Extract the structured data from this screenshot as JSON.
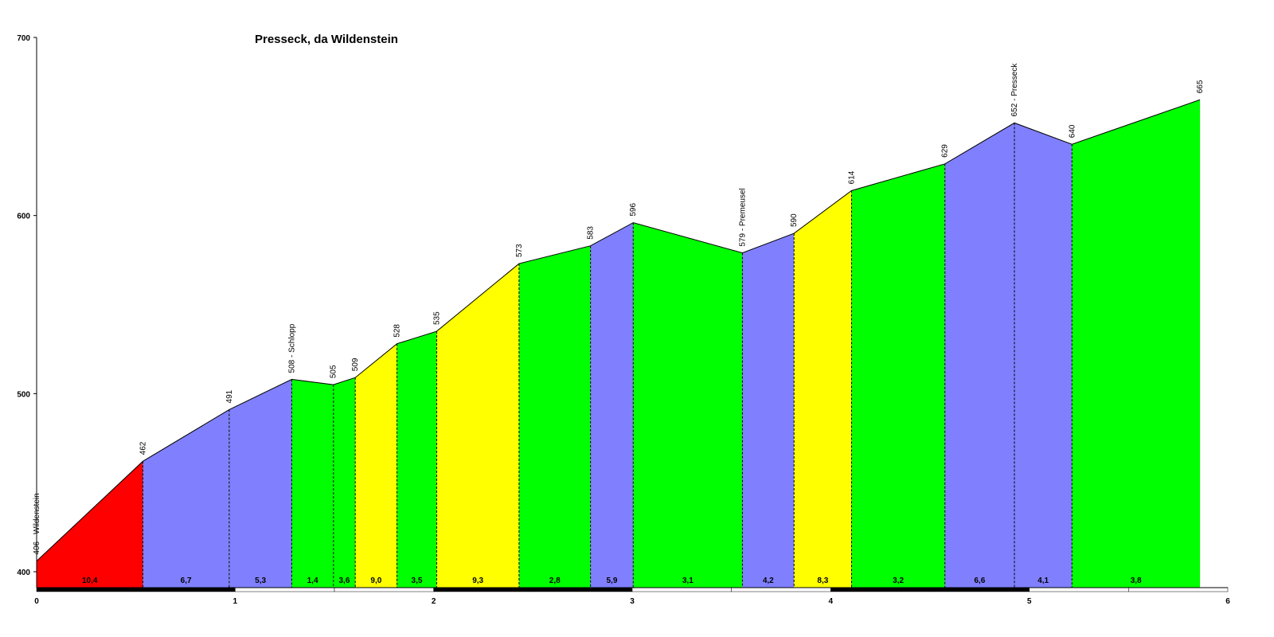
{
  "chart_data": {
    "type": "area",
    "title": "Presseck, da Wildenstein",
    "xlabel": "",
    "ylabel": "",
    "xlim": [
      0,
      6
    ],
    "ylim": [
      400,
      700
    ],
    "x_ticks": [
      "0",
      "1",
      "2",
      "3",
      "4",
      "5",
      "6"
    ],
    "y_ticks": [
      "400",
      "500",
      "600",
      "700"
    ],
    "points": [
      {
        "x": 0.0,
        "y": 406,
        "label": "406 - Wildenstein"
      },
      {
        "x": 0.535,
        "y": 462,
        "label": "462"
      },
      {
        "x": 0.97,
        "y": 491,
        "label": "491"
      },
      {
        "x": 1.285,
        "y": 508,
        "label": "508 - Schlopp"
      },
      {
        "x": 1.495,
        "y": 505,
        "label": "505"
      },
      {
        "x": 1.605,
        "y": 509,
        "label": "509"
      },
      {
        "x": 1.815,
        "y": 528,
        "label": "528"
      },
      {
        "x": 2.015,
        "y": 535,
        "label": "535"
      },
      {
        "x": 2.43,
        "y": 573,
        "label": "573"
      },
      {
        "x": 2.79,
        "y": 583,
        "label": "583"
      },
      {
        "x": 3.005,
        "y": 596,
        "label": "596"
      },
      {
        "x": 3.555,
        "y": 579,
        "label": "579 - Premeusel"
      },
      {
        "x": 3.815,
        "y": 590,
        "label": "590"
      },
      {
        "x": 4.105,
        "y": 614,
        "label": "614"
      },
      {
        "x": 4.575,
        "y": 629,
        "label": "629"
      },
      {
        "x": 4.925,
        "y": 652,
        "label": "652 - Presseck"
      },
      {
        "x": 5.215,
        "y": 640,
        "label": "640"
      },
      {
        "x": 5.86,
        "y": 665,
        "label": "665"
      }
    ],
    "segment_gradients": [
      "10,4",
      "6,7",
      "5,3",
      "1,4",
      "3,6",
      "9,0",
      "3,5",
      "9,3",
      "2,8",
      "5,9",
      "3,1",
      "4,2",
      "8,3",
      "3,2",
      "6,6",
      "4,1",
      "3,8"
    ],
    "segment_colors": [
      "#ff0000",
      "#8080ff",
      "#8080ff",
      "#00ff00",
      "#00ff00",
      "#ffff00",
      "#00ff00",
      "#ffff00",
      "#00ff00",
      "#8080ff",
      "#00ff00",
      "#8080ff",
      "#ffff00",
      "#00ff00",
      "#8080ff",
      "#8080ff",
      "#00ff00"
    ],
    "grid": false,
    "legend": "none"
  }
}
